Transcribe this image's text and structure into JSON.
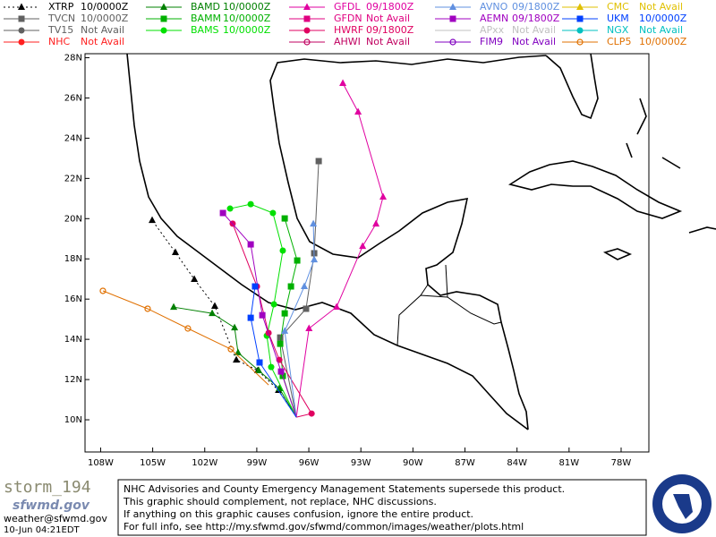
{
  "chart_data": {
    "type": "track-map",
    "xlim": [
      -108.9,
      -76.4
    ],
    "ylim": [
      8.4,
      28.2
    ],
    "xticks": [
      {
        "value": -108,
        "label": "108W"
      },
      {
        "value": -105,
        "label": "105W"
      },
      {
        "value": -102,
        "label": "102W"
      },
      {
        "value": -99,
        "label": "99W"
      },
      {
        "value": -96,
        "label": "96W"
      },
      {
        "value": -93,
        "label": "93W"
      },
      {
        "value": -90,
        "label": "90W"
      },
      {
        "value": -87,
        "label": "87W"
      },
      {
        "value": -84,
        "label": "84W"
      },
      {
        "value": -81,
        "label": "81W"
      },
      {
        "value": -78,
        "label": "78W"
      }
    ],
    "yticks": [
      {
        "value": 10,
        "label": "10N"
      },
      {
        "value": 12,
        "label": "12N"
      },
      {
        "value": 14,
        "label": "14N"
      },
      {
        "value": 16,
        "label": "16N"
      },
      {
        "value": 18,
        "label": "18N"
      },
      {
        "value": 20,
        "label": "20N"
      },
      {
        "value": 22,
        "label": "22N"
      },
      {
        "value": 24,
        "label": "24N"
      },
      {
        "value": 26,
        "label": "26N"
      },
      {
        "value": 28,
        "label": "28N"
      }
    ],
    "series": [
      {
        "name": "XTRP",
        "status": "10/0000Z",
        "color": "#000000",
        "marker": "triangle",
        "line_style": "dotted",
        "lon": [
          -96.72,
          -97.75,
          -98.94,
          -100.18,
          -101.42,
          -102.6,
          -103.69,
          -105.03
        ],
        "lat": [
          10.13,
          11.47,
          12.45,
          12.98,
          15.65,
          16.99,
          18.32,
          19.92
        ]
      },
      {
        "name": "TVCN",
        "status": "10/0000Z",
        "color": "#606060",
        "marker": "square",
        "lon": [
          -96.72,
          -97.65,
          -96.16,
          -95.69,
          -95.43
        ],
        "lat": [
          10.13,
          14.09,
          15.52,
          18.28,
          22.86
        ]
      },
      {
        "name": "TV15",
        "status": "Not Avail",
        "color": "#606060",
        "marker": "circle"
      },
      {
        "name": "NHC",
        "status": "Not Avail",
        "color": "#ff2020",
        "marker": "circle"
      },
      {
        "name": "BAMD",
        "status": "10/0000Z",
        "color": "#008000",
        "marker": "triangle",
        "lon": [
          -96.72,
          -97.7,
          -98.89,
          -100.08,
          -100.28,
          -101.57,
          -103.79
        ],
        "lat": [
          10.13,
          11.56,
          12.45,
          13.34,
          14.58,
          15.29,
          15.6
        ]
      },
      {
        "name": "BAMM",
        "status": "10/0000Z",
        "color": "#00b000",
        "marker": "square",
        "lon": [
          -96.72,
          -97.5,
          -97.65,
          -97.39,
          -97.03,
          -96.67,
          -97.39
        ],
        "lat": [
          10.13,
          12.18,
          13.78,
          15.29,
          16.63,
          17.92,
          20.01
        ]
      },
      {
        "name": "BAMS",
        "status": "10/0000Z",
        "color": "#00e000",
        "marker": "circle",
        "lon": [
          -96.72,
          -98.17,
          -98.42,
          -98.01,
          -97.5,
          -98.07,
          -99.35,
          -100.54
        ],
        "lat": [
          10.13,
          12.62,
          14.18,
          15.74,
          18.41,
          20.28,
          20.72,
          20.5
        ]
      },
      {
        "name": "GFDL",
        "status": "09/1800Z",
        "color": "#e000a0",
        "marker": "triangle",
        "lon": [
          -96.72,
          -95.99,
          -94.4,
          -92.9,
          -92.13,
          -91.72,
          -93.16,
          -94.04
        ],
        "lat": [
          10.13,
          14.54,
          15.61,
          18.63,
          19.74,
          21.08,
          25.31,
          26.73
        ]
      },
      {
        "name": "GFDN",
        "status": "Not Avail",
        "color": "#e00080",
        "marker": "square"
      },
      {
        "name": "HWRF",
        "status": "09/1800Z",
        "color": "#e00060",
        "marker": "circle",
        "lon": [
          -96.72,
          -95.84,
          -97.7,
          -98.32,
          -98.99,
          -100.39
        ],
        "lat": [
          10.13,
          10.31,
          12.98,
          14.32,
          16.63,
          19.75
        ]
      },
      {
        "name": "AHWI",
        "status": "Not Avail",
        "color": "#c00060",
        "marker": "hollow"
      },
      {
        "name": "AVNO",
        "status": "09/1800Z",
        "color": "#6090e0",
        "marker": "triangle",
        "lon": [
          -96.72,
          -97.39,
          -96.26,
          -95.69,
          -95.74
        ],
        "lat": [
          10.13,
          14.41,
          16.63,
          17.96,
          19.74
        ]
      },
      {
        "name": "AEMN",
        "status": "09/1800Z",
        "color": "#a000c0",
        "marker": "square",
        "lon": [
          -96.72,
          -97.6,
          -98.68,
          -99.35,
          -100.95
        ],
        "lat": [
          10.13,
          12.4,
          15.2,
          18.72,
          20.28
        ]
      },
      {
        "name": "APxx",
        "status": "Not Avail",
        "color": "#c0c0c0",
        "marker": "none"
      },
      {
        "name": "FIM9",
        "status": "Not Avail",
        "color": "#8000c0",
        "marker": "hollow"
      },
      {
        "name": "CMC",
        "status": "Not Avail",
        "color": "#e0c000",
        "marker": "triangle"
      },
      {
        "name": "UKM",
        "status": "10/0000Z",
        "color": "#0040ff",
        "marker": "square",
        "lon": [
          -96.72,
          -98.84,
          -99.35,
          -99.1
        ],
        "lat": [
          10.13,
          12.85,
          15.07,
          16.63
        ]
      },
      {
        "name": "NGX",
        "status": "Not Avail",
        "color": "#00c0c0",
        "marker": "circle"
      },
      {
        "name": "CLP5",
        "status": "10/0000Z",
        "color": "#e07000",
        "marker": "hollow",
        "lon": [
          -98.32,
          -100.49,
          -102.97,
          -105.29,
          -107.87
        ],
        "lat": [
          11.73,
          13.51,
          14.54,
          15.52,
          16.41
        ]
      }
    ]
  },
  "footer": {
    "storm": "storm_194",
    "site": "sfwmd.gov",
    "email": "weather@sfwmd.gov",
    "timestamp": "10-Jun 04:21EDT",
    "notice": [
      "NHC Advisories and County Emergency Management Statements supersede this product.",
      "This graphic should complement, not replace, NHC discussions.",
      "If anything on this graphic causes confusion, ignore the entire product.",
      "For full info, see  http://my.sfwmd.gov/sfwmd/common/images/weather/plots.html"
    ]
  }
}
